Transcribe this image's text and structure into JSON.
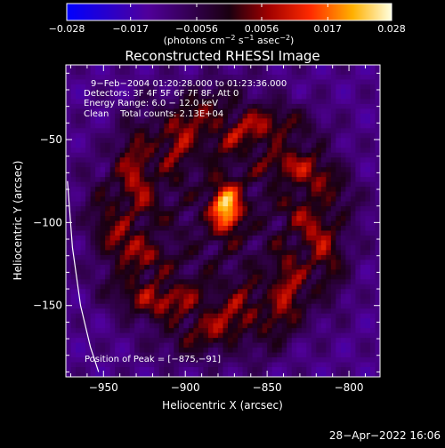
{
  "chart_data": {
    "type": "heatmap",
    "title": "Reconstructed RHESSI Image",
    "xlabel": "Heliocentric X (arcsec)",
    "ylabel": "Heliocentric Y (arcsec)",
    "xlim": [
      -973,
      -781
    ],
    "ylim": [
      -193,
      -5
    ],
    "x_ticks": [
      -950,
      -900,
      -850,
      -800
    ],
    "x_tick_labels": [
      "−950",
      "−900",
      "−850",
      "−800"
    ],
    "y_ticks": [
      -50,
      -100,
      -150
    ],
    "y_tick_labels": [
      "−50",
      "−100",
      "−150"
    ],
    "colorbar": {
      "range": [
        -0.028,
        0.028
      ],
      "ticks": [
        -0.028,
        -0.017,
        -0.0056,
        0.0056,
        0.017,
        0.028
      ],
      "tick_labels": [
        "−0.028",
        "−0.017",
        "−0.0056",
        "0.0056",
        "0.017",
        "0.028"
      ],
      "unit_main": "(photons cm",
      "unit_sup1": "−2",
      "unit_mid1": " s",
      "unit_sup2": "−1",
      "unit_mid2": " asec",
      "unit_sup3": "−2",
      "unit_end": ")"
    },
    "annotations": {
      "time_range": "9−Feb−2004 01:20:28.000 to 01:23:36.000",
      "detectors": "Detectors: 3F 4F 5F 6F 7F 8F, Att 0",
      "energy": "Energy Range: 6.0 − 12.0 keV",
      "clean": "Clean    Total counts: 2.13E+04",
      "peak": "Position of Peak = [−875,−91]"
    },
    "peak": {
      "x": -875,
      "y": -91,
      "value": 0.028
    },
    "ring": {
      "center_x": -878,
      "center_y": -100,
      "radius": 60,
      "level": 0.0125
    },
    "limb": [
      [
        -972,
        -75
      ],
      [
        -969,
        -115
      ],
      [
        -964,
        -150
      ],
      [
        -958,
        -175
      ],
      [
        -953,
        -190
      ]
    ],
    "footer": "28−Apr−2022 16:06"
  }
}
